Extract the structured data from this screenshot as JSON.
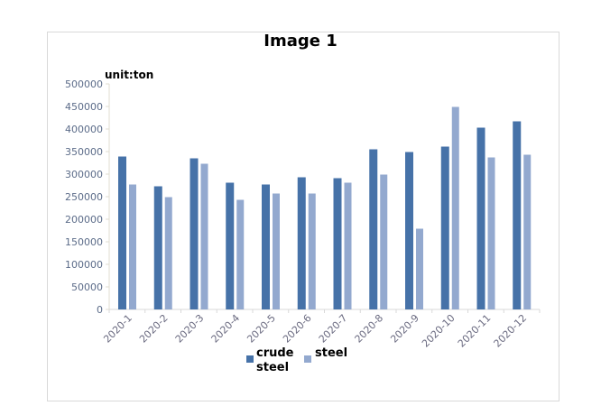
{
  "chart_data": {
    "type": "bar",
    "title": "Image 1",
    "unit_label": "unit:ton",
    "categories": [
      "2020-1",
      "2020-2",
      "2020-3",
      "2020-4",
      "2020-5",
      "2020-6",
      "2020-7",
      "2020-8",
      "2020-9",
      "2020-10",
      "2020-11",
      "2020-12"
    ],
    "series": [
      {
        "name": "crude steel",
        "color": "#4672a8",
        "values": [
          339000,
          273000,
          335000,
          281000,
          277000,
          293000,
          291000,
          355000,
          349000,
          361000,
          403000,
          417000
        ]
      },
      {
        "name": "steel",
        "color": "#93a9cf",
        "values": [
          277000,
          249000,
          323000,
          243000,
          257000,
          257000,
          281000,
          299000,
          179000,
          449000,
          337000,
          343000
        ]
      }
    ],
    "ylim": [
      0,
      500000
    ],
    "yticks": [
      0,
      50000,
      100000,
      150000,
      200000,
      250000,
      300000,
      350000,
      400000,
      450000,
      500000
    ],
    "grid": false,
    "legend_position": "bottom"
  }
}
